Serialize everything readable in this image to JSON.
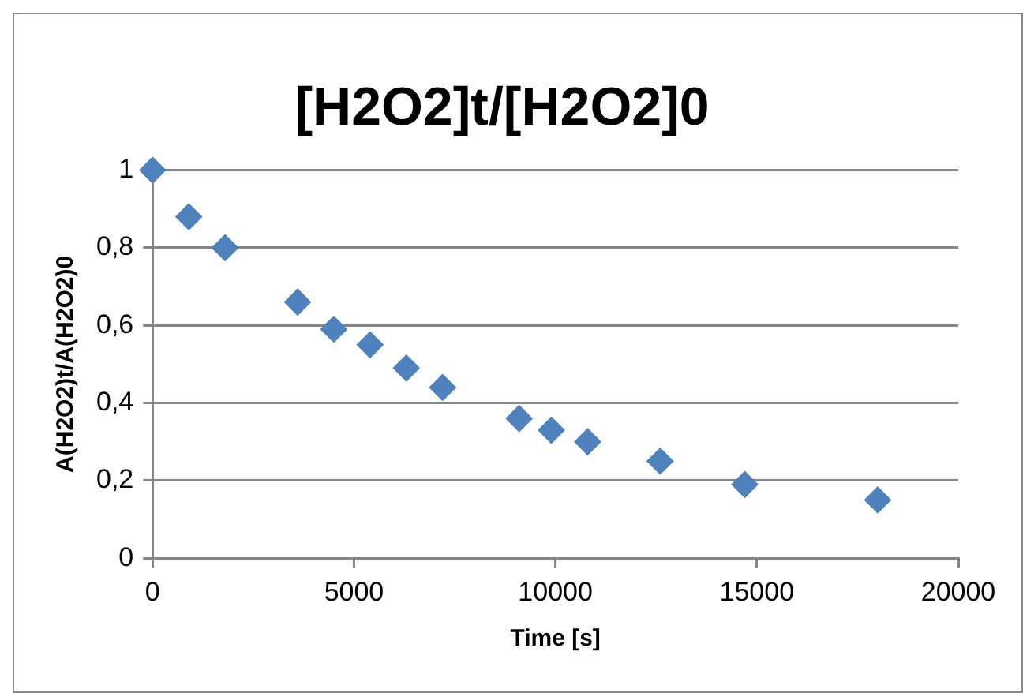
{
  "chart_data": {
    "type": "scatter",
    "title": "[H2O2]t/[H2O2]0",
    "xlabel": "Time [s]",
    "ylabel": "A(H2O2)t/A(H2O2)0",
    "x": [
      0,
      900,
      1800,
      3600,
      4500,
      5400,
      6300,
      7200,
      9100,
      9900,
      10800,
      12600,
      14700,
      18000
    ],
    "series": [
      {
        "color": "#4f81bd",
        "values": [
          1,
          0.88,
          0.8,
          0.66,
          0.59,
          0.55,
          0.49,
          0.44,
          0.36,
          0.33,
          0.3,
          0.25,
          0.19,
          0.15
        ]
      }
    ],
    "xlim": [
      0,
      20000
    ],
    "xticks": [
      0,
      5000,
      10000,
      15000,
      20000
    ],
    "ylim": [
      0,
      1
    ],
    "yticks": [
      0,
      {
        "value": 0.2,
        "label": "0,2"
      },
      {
        "value": 0.4,
        "label": "0,4"
      },
      {
        "value": 0.6,
        "label": "0,6"
      },
      {
        "value": 0.8,
        "label": "0,8"
      },
      1
    ],
    "grid": "y",
    "legend": false,
    "marker": "diamond"
  }
}
